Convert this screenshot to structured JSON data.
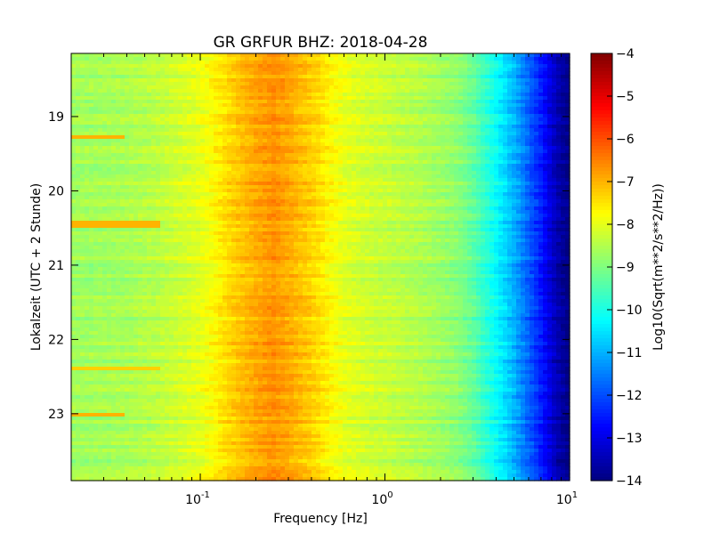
{
  "chart_data": {
    "type": "heatmap",
    "title": "GR GRFUR BHZ: 2018-04-28",
    "xlabel": "Frequency [Hz]",
    "ylabel": "Lokalzeit (UTC + 2 Stunde)",
    "x_scale": "log",
    "xlim": [
      0.02,
      10
    ],
    "x_ticks": [
      {
        "value": 0.1,
        "base": "10",
        "exp": "-1"
      },
      {
        "value": 1,
        "base": "10",
        "exp": "0"
      },
      {
        "value": 10,
        "base": "10",
        "exp": "1"
      }
    ],
    "ylim": [
      18.15,
      23.9
    ],
    "y_ticks": [
      {
        "value": 19,
        "label": "19"
      },
      {
        "value": 20,
        "label": "20"
      },
      {
        "value": 21,
        "label": "21"
      },
      {
        "value": 22,
        "label": "22"
      },
      {
        "value": 23,
        "label": "23"
      }
    ],
    "colorbar": {
      "label": "Log10(Sqrt(m**2/s**2/Hz))",
      "range": [
        -14,
        -4
      ],
      "colormap": "jet",
      "ticks": [
        {
          "value": -4,
          "label": "−4"
        },
        {
          "value": -5,
          "label": "−5"
        },
        {
          "value": -6,
          "label": "−6"
        },
        {
          "value": -7,
          "label": "−7"
        },
        {
          "value": -8,
          "label": "−8"
        },
        {
          "value": -9,
          "label": "−9"
        },
        {
          "value": -10,
          "label": "−10"
        },
        {
          "value": -11,
          "label": "−11"
        },
        {
          "value": -12,
          "label": "−12"
        },
        {
          "value": -13,
          "label": "−13"
        },
        {
          "value": -14,
          "label": "−14"
        }
      ]
    },
    "frequency_profile": [
      {
        "f": 0.02,
        "value": -8.7
      },
      {
        "f": 0.04,
        "value": -8.6
      },
      {
        "f": 0.06,
        "value": -8.4
      },
      {
        "f": 0.1,
        "value": -8.0
      },
      {
        "f": 0.12,
        "value": -7.7
      },
      {
        "f": 0.15,
        "value": -7.3
      },
      {
        "f": 0.2,
        "value": -6.9
      },
      {
        "f": 0.25,
        "value": -6.7
      },
      {
        "f": 0.3,
        "value": -6.9
      },
      {
        "f": 0.4,
        "value": -7.3
      },
      {
        "f": 0.5,
        "value": -7.7
      },
      {
        "f": 0.6,
        "value": -8.0
      },
      {
        "f": 0.8,
        "value": -8.2
      },
      {
        "f": 1.0,
        "value": -8.3
      },
      {
        "f": 1.5,
        "value": -8.5
      },
      {
        "f": 2.0,
        "value": -8.7
      },
      {
        "f": 2.5,
        "value": -8.9
      },
      {
        "f": 3.0,
        "value": -9.3
      },
      {
        "f": 4.0,
        "value": -10.2
      },
      {
        "f": 5.0,
        "value": -11.0
      },
      {
        "f": 6.0,
        "value": -11.8
      },
      {
        "f": 7.0,
        "value": -12.5
      },
      {
        "f": 8.0,
        "value": -13.2
      },
      {
        "f": 9.0,
        "value": -13.7
      },
      {
        "f": 10.0,
        "value": -14.0
      }
    ],
    "low_frequency_bands": [
      {
        "hour": 19.28,
        "f_max": 0.04,
        "value": -7.0
      },
      {
        "hour": 20.45,
        "f_max": 0.06,
        "value": -7.0
      },
      {
        "hour": 22.4,
        "f_max": 0.06,
        "value": -7.3
      },
      {
        "hour": 23.0,
        "f_max": 0.04,
        "value": -7.0
      }
    ]
  }
}
